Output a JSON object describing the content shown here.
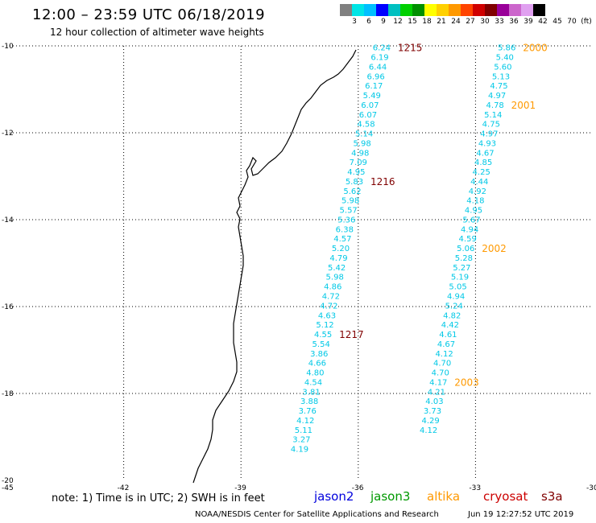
{
  "header": {
    "title": "12:00 – 23:59 UTC 06/18/2019",
    "subtitle": "12 hour collection of altimeter wave heights"
  },
  "colorbar": {
    "colors": [
      "#808080",
      "#00e5e5",
      "#00bfff",
      "#0000ff",
      "#00c0c0",
      "#00d000",
      "#009000",
      "#ffff00",
      "#ffd000",
      "#ff9900",
      "#ff4400",
      "#d00000",
      "#800000",
      "#990099",
      "#cc66cc",
      "#e0a0f0",
      "#000000"
    ],
    "labels": [
      "3",
      "6",
      "9",
      "12",
      "15",
      "18",
      "21",
      "24",
      "27",
      "30",
      "33",
      "36",
      "39",
      "42",
      "45",
      "70",
      "(ft)"
    ]
  },
  "map": {
    "lat_ticks": [
      "-10",
      "-12",
      "-14",
      "-16",
      "-18",
      "-20"
    ],
    "lon_ticks": [
      "-45",
      "-42",
      "-39",
      "-36",
      "-33",
      "-30"
    ],
    "lon_range": [
      -45,
      -30
    ],
    "lat_range": [
      -20,
      -10
    ],
    "grid": "dotted"
  },
  "tracks": [
    {
      "id": "track-a",
      "color": "#00c8e6",
      "points": [
        {
          "lon": -35.4,
          "lat": -10.03,
          "v": "6.24"
        },
        {
          "lon": -35.45,
          "lat": -10.25,
          "v": "6.19"
        },
        {
          "lon": -35.5,
          "lat": -10.47,
          "v": "6.44"
        },
        {
          "lon": -35.55,
          "lat": -10.69,
          "v": "6.96"
        },
        {
          "lon": -35.6,
          "lat": -10.91,
          "v": "6.17"
        },
        {
          "lon": -35.65,
          "lat": -11.13,
          "v": "5.49"
        },
        {
          "lon": -35.7,
          "lat": -11.35,
          "v": "6.07"
        },
        {
          "lon": -35.75,
          "lat": -11.57,
          "v": "6.07"
        },
        {
          "lon": -35.8,
          "lat": -11.79,
          "v": "4.58"
        },
        {
          "lon": -35.85,
          "lat": -12.01,
          "v": "5.14"
        },
        {
          "lon": -35.9,
          "lat": -12.23,
          "v": "5.98"
        },
        {
          "lon": -35.95,
          "lat": -12.45,
          "v": "4.98"
        },
        {
          "lon": -36.0,
          "lat": -12.67,
          "v": "7.09"
        },
        {
          "lon": -36.05,
          "lat": -12.89,
          "v": "4.95"
        },
        {
          "lon": -36.1,
          "lat": -13.11,
          "v": "5.83"
        },
        {
          "lon": -36.15,
          "lat": -13.33,
          "v": "5.62"
        },
        {
          "lon": -36.2,
          "lat": -13.55,
          "v": "5.98"
        },
        {
          "lon": -36.25,
          "lat": -13.77,
          "v": "5.57"
        },
        {
          "lon": -36.3,
          "lat": -13.99,
          "v": "5.36"
        },
        {
          "lon": -36.35,
          "lat": -14.21,
          "v": "6.38"
        },
        {
          "lon": -36.4,
          "lat": -14.43,
          "v": "4.57"
        },
        {
          "lon": -36.45,
          "lat": -14.65,
          "v": "5.20"
        },
        {
          "lon": -36.5,
          "lat": -14.87,
          "v": "4.79"
        },
        {
          "lon": -36.55,
          "lat": -15.09,
          "v": "5.42"
        },
        {
          "lon": -36.6,
          "lat": -15.31,
          "v": "5.98"
        },
        {
          "lon": -36.65,
          "lat": -15.53,
          "v": "4.86"
        },
        {
          "lon": -36.7,
          "lat": -15.75,
          "v": "4.72"
        },
        {
          "lon": -36.75,
          "lat": -15.97,
          "v": "4.72"
        },
        {
          "lon": -36.8,
          "lat": -16.19,
          "v": "4.63"
        },
        {
          "lon": -36.85,
          "lat": -16.41,
          "v": "5.12"
        },
        {
          "lon": -36.9,
          "lat": -16.63,
          "v": "4.55"
        },
        {
          "lon": -36.95,
          "lat": -16.85,
          "v": "5.54"
        },
        {
          "lon": -37.0,
          "lat": -17.07,
          "v": "3.86"
        },
        {
          "lon": -37.05,
          "lat": -17.29,
          "v": "4.66"
        },
        {
          "lon": -37.1,
          "lat": -17.51,
          "v": "4.80"
        },
        {
          "lon": -37.15,
          "lat": -17.73,
          "v": "4.54"
        },
        {
          "lon": -37.2,
          "lat": -17.95,
          "v": "3.81"
        },
        {
          "lon": -37.25,
          "lat": -18.17,
          "v": "3.88"
        },
        {
          "lon": -37.3,
          "lat": -18.39,
          "v": "3.76"
        },
        {
          "lon": -37.35,
          "lat": -18.61,
          "v": "4.12"
        },
        {
          "lon": -37.4,
          "lat": -18.83,
          "v": "5.11"
        },
        {
          "lon": -37.45,
          "lat": -19.05,
          "v": "3.27"
        },
        {
          "lon": -37.5,
          "lat": -19.27,
          "v": "4.19"
        }
      ],
      "times": [
        {
          "text": "1215",
          "at": 0,
          "color": "#800000"
        },
        {
          "text": "1216",
          "at": 14,
          "color": "#800000"
        },
        {
          "text": "1217",
          "at": 30,
          "color": "#800000"
        }
      ]
    },
    {
      "id": "track-b",
      "color": "#00c8e6",
      "points": [
        {
          "lon": -32.2,
          "lat": -10.03,
          "v": "5.86"
        },
        {
          "lon": -32.25,
          "lat": -10.25,
          "v": "5.40"
        },
        {
          "lon": -32.3,
          "lat": -10.47,
          "v": "5.60"
        },
        {
          "lon": -32.35,
          "lat": -10.69,
          "v": "5.13"
        },
        {
          "lon": -32.4,
          "lat": -10.91,
          "v": "4.75"
        },
        {
          "lon": -32.45,
          "lat": -11.13,
          "v": "4.97"
        },
        {
          "lon": -32.5,
          "lat": -11.35,
          "v": "4.78"
        },
        {
          "lon": -32.55,
          "lat": -11.57,
          "v": "5.14"
        },
        {
          "lon": -32.6,
          "lat": -11.79,
          "v": "4.75"
        },
        {
          "lon": -32.65,
          "lat": -12.01,
          "v": "4.97"
        },
        {
          "lon": -32.7,
          "lat": -12.23,
          "v": "4.93"
        },
        {
          "lon": -32.75,
          "lat": -12.45,
          "v": "4.67"
        },
        {
          "lon": -32.8,
          "lat": -12.67,
          "v": "4.85"
        },
        {
          "lon": -32.85,
          "lat": -12.89,
          "v": "4.25"
        },
        {
          "lon": -32.9,
          "lat": -13.11,
          "v": "4.44"
        },
        {
          "lon": -32.95,
          "lat": -13.33,
          "v": "4.92"
        },
        {
          "lon": -33.0,
          "lat": -13.55,
          "v": "4.18"
        },
        {
          "lon": -33.05,
          "lat": -13.77,
          "v": "4.95"
        },
        {
          "lon": -33.1,
          "lat": -13.99,
          "v": "5.67"
        },
        {
          "lon": -33.15,
          "lat": -14.21,
          "v": "4.94"
        },
        {
          "lon": -33.2,
          "lat": -14.43,
          "v": "4.59"
        },
        {
          "lon": -33.25,
          "lat": -14.65,
          "v": "5.06"
        },
        {
          "lon": -33.3,
          "lat": -14.87,
          "v": "5.28"
        },
        {
          "lon": -33.35,
          "lat": -15.09,
          "v": "5.27"
        },
        {
          "lon": -33.4,
          "lat": -15.31,
          "v": "5.19"
        },
        {
          "lon": -33.45,
          "lat": -15.53,
          "v": "5.05"
        },
        {
          "lon": -33.5,
          "lat": -15.75,
          "v": "4.94"
        },
        {
          "lon": -33.55,
          "lat": -15.97,
          "v": "5.24"
        },
        {
          "lon": -33.6,
          "lat": -16.19,
          "v": "4.82"
        },
        {
          "lon": -33.65,
          "lat": -16.41,
          "v": "4.42"
        },
        {
          "lon": -33.7,
          "lat": -16.63,
          "v": "4.61"
        },
        {
          "lon": -33.75,
          "lat": -16.85,
          "v": "4.67"
        },
        {
          "lon": -33.8,
          "lat": -17.07,
          "v": "4.12"
        },
        {
          "lon": -33.85,
          "lat": -17.29,
          "v": "4.70"
        },
        {
          "lon": -33.9,
          "lat": -17.51,
          "v": "4.70"
        },
        {
          "lon": -33.95,
          "lat": -17.73,
          "v": "4.17"
        },
        {
          "lon": -34.0,
          "lat": -17.95,
          "v": "4.21"
        },
        {
          "lon": -34.05,
          "lat": -18.17,
          "v": "4.03"
        },
        {
          "lon": -34.1,
          "lat": -18.39,
          "v": "3.73"
        },
        {
          "lon": -34.15,
          "lat": -18.61,
          "v": "4.29"
        },
        {
          "lon": -34.2,
          "lat": -18.83,
          "v": "4.12"
        }
      ],
      "times": [
        {
          "text": "2000",
          "at": 0,
          "color": "#ff9900"
        },
        {
          "text": "2001",
          "at": 6,
          "color": "#ff9900"
        },
        {
          "text": "2002",
          "at": 21,
          "color": "#ff9900"
        },
        {
          "text": "2003",
          "at": 35,
          "color": "#ff9900"
        }
      ]
    }
  ],
  "note": "note: 1) Time is in UTC; 2) SWH is in feet",
  "legend": [
    {
      "name": "jason2",
      "color": "#0000dd"
    },
    {
      "name": "jason3",
      "color": "#009900"
    },
    {
      "name": "altika",
      "color": "#ff9900"
    },
    {
      "name": "cryosat",
      "color": "#cc0000"
    },
    {
      "name": "s3a",
      "color": "#800000"
    }
  ],
  "footer": {
    "credit": "NOAA/NESDIS Center for Satellite Applications and Research",
    "timestamp": "Jun 19 12:27:52 UTC 2019"
  }
}
